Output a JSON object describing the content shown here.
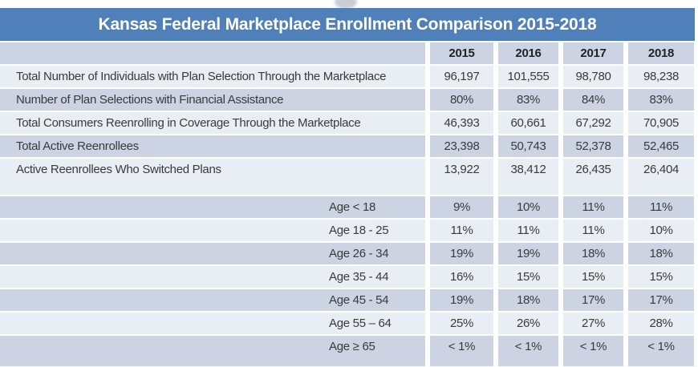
{
  "chart_data": {
    "type": "table",
    "title": "Kansas Federal Marketplace Enrollment Comparison 2015-2018",
    "columns": [
      "",
      "2015",
      "2016",
      "2017",
      "2018"
    ],
    "rows": [
      {
        "label": "Total Number of Individuals with Plan Selection Through the Marketplace",
        "values": [
          "96,197",
          "101,555",
          "98,780",
          "98,238"
        ],
        "shade": "light",
        "indent": false
      },
      {
        "label": "Number of Plan Selections with Financial Assistance",
        "values": [
          "80%",
          "83%",
          "84%",
          "83%"
        ],
        "shade": "dark",
        "indent": false
      },
      {
        "label": "Total Consumers Reenrolling in Coverage Through the Marketplace",
        "values": [
          "46,393",
          "60,661",
          "67,292",
          "70,905"
        ],
        "shade": "light",
        "indent": false
      },
      {
        "label": "Total Active Reenrollees",
        "values": [
          "23,398",
          "50,743",
          "52,378",
          "52,465"
        ],
        "shade": "dark",
        "indent": false
      },
      {
        "label": "Active Reenrollees Who Switched Plans",
        "values": [
          "13,922",
          "38,412",
          "26,435",
          "26,404"
        ],
        "shade": "light",
        "indent": false,
        "tall": true
      },
      {
        "label": "Age < 18",
        "values": [
          "9%",
          "10%",
          "11%",
          "11%"
        ],
        "shade": "dark",
        "indent": true
      },
      {
        "label": "Age 18 - 25",
        "values": [
          "11%",
          "11%",
          "11%",
          "10%"
        ],
        "shade": "light",
        "indent": true
      },
      {
        "label": "Age 26 - 34",
        "values": [
          "19%",
          "19%",
          "18%",
          "18%"
        ],
        "shade": "dark",
        "indent": true
      },
      {
        "label": "Age 35 - 44",
        "values": [
          "16%",
          "15%",
          "15%",
          "15%"
        ],
        "shade": "light",
        "indent": true
      },
      {
        "label": "Age 45 - 54",
        "values": [
          "19%",
          "18%",
          "17%",
          "17%"
        ],
        "shade": "dark",
        "indent": true
      },
      {
        "label": "Age 55 – 64",
        "values": [
          "25%",
          "26%",
          "27%",
          "28%"
        ],
        "shade": "light",
        "indent": true
      },
      {
        "label": "Age ≥ 65",
        "values": [
          "< 1%",
          "< 1%",
          "< 1%",
          "< 1%"
        ],
        "shade": "dark",
        "indent": true,
        "last": true
      }
    ],
    "layout": {
      "header_position": "top",
      "grid": "white separators between rows and columns",
      "row_banding": [
        "light",
        "dark"
      ]
    },
    "colors": {
      "title_bar": "#4f80ba",
      "title_text": "#ffffff",
      "band_dark": "#ccd4e3",
      "band_light": "#e9edf4",
      "body_text": "#3a3a3a",
      "header_text": "#222222"
    }
  }
}
